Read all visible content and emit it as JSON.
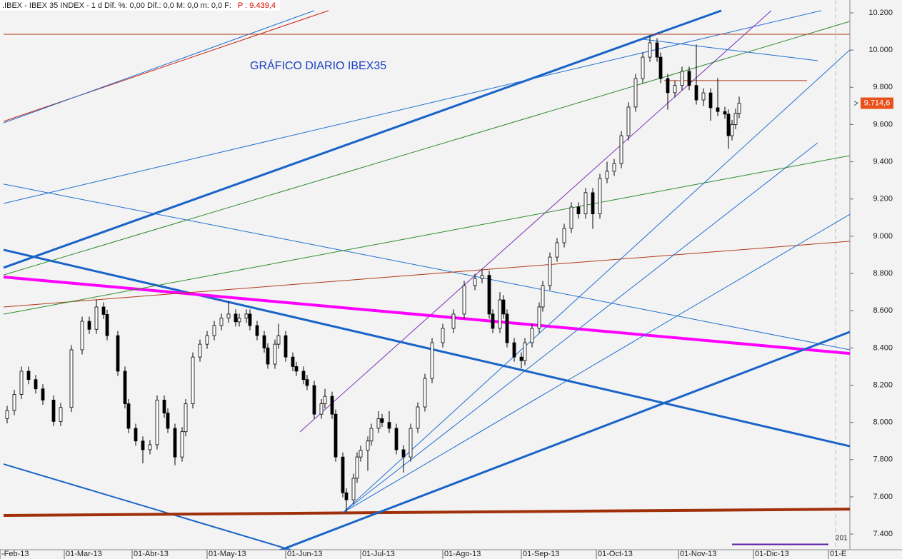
{
  "chart_data": {
    "type": "candlestick",
    "header": ".IBEX - IBEX 35 INDEX - 1 d Dif. %: 0,00  Dif.: 0,0  M: 0,0  m: 0,0  F:",
    "header_price": "P : 9.439,4",
    "annotation": "GRÁFICO DIARIO IBEX35",
    "last_price_label": "9.714,6",
    "corner_label": "201",
    "xlim": [
      0,
      238
    ],
    "ylim": [
      7316,
      10269
    ],
    "xticks": [
      {
        "value": 0,
        "label": "-Feb-13"
      },
      {
        "value": 18,
        "label": "01-Mar-13"
      },
      {
        "value": 37,
        "label": "01-Abr-13"
      },
      {
        "value": 58,
        "label": "01-May-13"
      },
      {
        "value": 80,
        "label": "01-Jun-13"
      },
      {
        "value": 101,
        "label": "01-Jul-13"
      },
      {
        "value": 124,
        "label": "01-Ago-13"
      },
      {
        "value": 146,
        "label": "01-Sep-13"
      },
      {
        "value": 167,
        "label": "01-Oct-13"
      },
      {
        "value": 190,
        "label": "01-Nov-13"
      },
      {
        "value": 211,
        "label": "01-Dic-13"
      },
      {
        "value": 232,
        "label": "01-E"
      }
    ],
    "yticks": [
      {
        "value": 7400,
        "label": "7.400"
      },
      {
        "value": 7600,
        "label": "7.600"
      },
      {
        "value": 7800,
        "label": "7.800"
      },
      {
        "value": 8000,
        "label": "8.000"
      },
      {
        "value": 8200,
        "label": "8.200"
      },
      {
        "value": 8400,
        "label": "8.400"
      },
      {
        "value": 8600,
        "label": "8.600"
      },
      {
        "value": 8800,
        "label": "8.800"
      },
      {
        "value": 9000,
        "label": "9.000"
      },
      {
        "value": 9200,
        "label": "9.200"
      },
      {
        "value": 9400,
        "label": "9.400"
      },
      {
        "value": 9600,
        "label": "9.600"
      },
      {
        "value": 9800,
        "label": "9.800"
      },
      {
        "value": 10000,
        "label": "10.000"
      },
      {
        "value": 10200,
        "label": "10.200"
      }
    ],
    "candles": [
      [
        2,
        8020,
        8089,
        7995,
        8064
      ],
      [
        4,
        8064,
        8175,
        8039,
        8150
      ],
      [
        6,
        8150,
        8300,
        8125,
        8275
      ],
      [
        8,
        8275,
        8300,
        8205,
        8230
      ],
      [
        10,
        8230,
        8255,
        8155,
        8180
      ],
      [
        12,
        8180,
        8205,
        8095,
        8120
      ],
      [
        15,
        8120,
        8145,
        7980,
        8005
      ],
      [
        17,
        8005,
        8105,
        7980,
        8080
      ],
      [
        20,
        8080,
        8415,
        8055,
        8390
      ],
      [
        23,
        8390,
        8568,
        8365,
        8543
      ],
      [
        25,
        8543,
        8568,
        8475,
        8500
      ],
      [
        27,
        8500,
        8660,
        8475,
        8620
      ],
      [
        29,
        8620,
        8645,
        8555,
        8580
      ],
      [
        30,
        8580,
        8605,
        8441,
        8466
      ],
      [
        33,
        8466,
        8491,
        8250,
        8275
      ],
      [
        35,
        8275,
        8300,
        8075,
        8100
      ],
      [
        36,
        8100,
        8125,
        7943,
        7968
      ],
      [
        38,
        7968,
        7993,
        7875,
        7900
      ],
      [
        40,
        7900,
        7925,
        7780,
        7853
      ],
      [
        42,
        7853,
        7905,
        7828,
        7880
      ],
      [
        44,
        7880,
        8145,
        7855,
        8120
      ],
      [
        46,
        8120,
        8145,
        8025,
        8050
      ],
      [
        47,
        8050,
        8075,
        7943,
        7968
      ],
      [
        49,
        7968,
        7993,
        7770,
        7814
      ],
      [
        51,
        7814,
        7975,
        7789,
        7950
      ],
      [
        52,
        7950,
        8125,
        7925,
        8100
      ],
      [
        54,
        8100,
        8376,
        8075,
        8351
      ],
      [
        56,
        8351,
        8445,
        8326,
        8420
      ],
      [
        58,
        8420,
        8491,
        8395,
        8466
      ],
      [
        60,
        8466,
        8545,
        8441,
        8520
      ],
      [
        62,
        8520,
        8585,
        8495,
        8560
      ],
      [
        64,
        8560,
        8650,
        8535,
        8582
      ],
      [
        66,
        8582,
        8607,
        8515,
        8540
      ],
      [
        67,
        8540,
        8585,
        8515,
        8560
      ],
      [
        69,
        8560,
        8607,
        8535,
        8582
      ],
      [
        70,
        8582,
        8607,
        8495,
        8520
      ],
      [
        72,
        8520,
        8545,
        8441,
        8466
      ],
      [
        74,
        8466,
        8491,
        8375,
        8400
      ],
      [
        75,
        8400,
        8425,
        8288,
        8313
      ],
      [
        77,
        8313,
        8445,
        8288,
        8420
      ],
      [
        78,
        8420,
        8530,
        8395,
        8466
      ],
      [
        80,
        8466,
        8491,
        8326,
        8351
      ],
      [
        82,
        8351,
        8376,
        8275,
        8300
      ],
      [
        83,
        8300,
        8325,
        8250,
        8275
      ],
      [
        85,
        8275,
        8300,
        8205,
        8230
      ],
      [
        86,
        8230,
        8255,
        8173,
        8198
      ],
      [
        88,
        8198,
        8223,
        8019,
        8044
      ],
      [
        90,
        8044,
        8125,
        8019,
        8100
      ],
      [
        91,
        8100,
        8180,
        8075,
        8140
      ],
      [
        93,
        8140,
        8165,
        8019,
        8044
      ],
      [
        94,
        8044,
        8069,
        7789,
        7814
      ],
      [
        96,
        7814,
        7839,
        7597,
        7622
      ],
      [
        97,
        7622,
        7647,
        7520,
        7584
      ],
      [
        99,
        7584,
        7725,
        7559,
        7700
      ],
      [
        100,
        7700,
        7839,
        7675,
        7814
      ],
      [
        101,
        7814,
        7875,
        7789,
        7850
      ],
      [
        103,
        7850,
        7925,
        7740,
        7900
      ],
      [
        104,
        7900,
        7993,
        7875,
        7968
      ],
      [
        106,
        7968,
        8060,
        7943,
        8020
      ],
      [
        107,
        8020,
        8045,
        7975,
        8000
      ],
      [
        109,
        8000,
        8060,
        7943,
        7968
      ],
      [
        111,
        7968,
        7993,
        7828,
        7853
      ],
      [
        113,
        7853,
        7878,
        7730,
        7814
      ],
      [
        115,
        7814,
        7993,
        7789,
        7968
      ],
      [
        117,
        7968,
        8108,
        7943,
        8083
      ],
      [
        119,
        8083,
        8261,
        8058,
        8236
      ],
      [
        121,
        8236,
        8453,
        8211,
        8428
      ],
      [
        124,
        8428,
        8530,
        8403,
        8505
      ],
      [
        127,
        8505,
        8607,
        8480,
        8582
      ],
      [
        130,
        8582,
        8760,
        8557,
        8735
      ],
      [
        133,
        8735,
        8798,
        8710,
        8773
      ],
      [
        135,
        8773,
        8825,
        8748,
        8790
      ],
      [
        137,
        8790,
        8815,
        8557,
        8582
      ],
      [
        138,
        8582,
        8607,
        8480,
        8505
      ],
      [
        140,
        8505,
        8700,
        8480,
        8658
      ],
      [
        141,
        8658,
        8683,
        8557,
        8582
      ],
      [
        142,
        8582,
        8607,
        8403,
        8428
      ],
      [
        144,
        8428,
        8453,
        8326,
        8351
      ],
      [
        146,
        8351,
        8376,
        8290,
        8332
      ],
      [
        147,
        8332,
        8453,
        8307,
        8428
      ],
      [
        149,
        8428,
        8530,
        8403,
        8505
      ],
      [
        151,
        8505,
        8645,
        8480,
        8620
      ],
      [
        152,
        8620,
        8760,
        8595,
        8735
      ],
      [
        154,
        8735,
        8913,
        8710,
        8888
      ],
      [
        156,
        8888,
        8990,
        8863,
        8965
      ],
      [
        158,
        8965,
        9067,
        8940,
        9042
      ],
      [
        160,
        9042,
        9182,
        9017,
        9157
      ],
      [
        162,
        9157,
        9182,
        9095,
        9120
      ],
      [
        164,
        9120,
        9259,
        9095,
        9234
      ],
      [
        166,
        9234,
        9259,
        9040,
        9120
      ],
      [
        168,
        9120,
        9335,
        9095,
        9310
      ],
      [
        170,
        9310,
        9400,
        9285,
        9349
      ],
      [
        172,
        9349,
        9415,
        9324,
        9390
      ],
      [
        174,
        9390,
        9565,
        9365,
        9540
      ],
      [
        176,
        9540,
        9719,
        9515,
        9694
      ],
      [
        178,
        9694,
        9872,
        9669,
        9847
      ],
      [
        180,
        9847,
        9987,
        9822,
        9962
      ],
      [
        182,
        9962,
        10080,
        9937,
        10039
      ],
      [
        184,
        10039,
        10064,
        9937,
        9962
      ],
      [
        185,
        9962,
        9987,
        9822,
        9847
      ],
      [
        187,
        9847,
        9872,
        9680,
        9771
      ],
      [
        189,
        9771,
        9835,
        9746,
        9810
      ],
      [
        191,
        9810,
        9911,
        9785,
        9886
      ],
      [
        193,
        9886,
        9911,
        9785,
        9810
      ],
      [
        195,
        9810,
        10030,
        9707,
        9732
      ],
      [
        197,
        9732,
        9795,
        9700,
        9770
      ],
      [
        199,
        9770,
        9795,
        9620,
        9690
      ],
      [
        201,
        9690,
        9850,
        9645,
        9670
      ],
      [
        203,
        9670,
        9695,
        9631,
        9656
      ],
      [
        204,
        9656,
        9681,
        9470,
        9540
      ],
      [
        205,
        9540,
        9625,
        9515,
        9600
      ],
      [
        206,
        9600,
        9685,
        9575,
        9660
      ],
      [
        207,
        9660,
        9750,
        9635,
        9714.6
      ]
    ],
    "trendlines": [
      {
        "color": "#cc1f10",
        "width": 1,
        "x": [
          1,
          92
        ],
        "y": [
          9617,
          10212
        ]
      },
      {
        "color": "#1f6fd1",
        "width": 1,
        "x": [
          1,
          88
        ],
        "y": [
          9609,
          10212
        ]
      },
      {
        "color": "#1a64c8",
        "width": 3,
        "x": [
          1,
          202
        ],
        "y": [
          8831,
          10212
        ]
      },
      {
        "color": "#1f6fd1",
        "width": 1,
        "x": [
          1,
          230
        ],
        "y": [
          9176,
          10212
        ]
      },
      {
        "color": "#2e8b2e",
        "width": 1,
        "x": [
          1,
          238
        ],
        "y": [
          8792,
          10154
        ]
      },
      {
        "color": "#7b2fbe",
        "width": 1,
        "x": [
          84,
          216
        ],
        "y": [
          7949,
          10212
        ]
      },
      {
        "color": "#1f6fd1",
        "width": 1,
        "x": [
          1,
          238
        ],
        "y": [
          9280,
          8390
        ]
      },
      {
        "color": "#1a64c8",
        "width": 3,
        "x": [
          1,
          238
        ],
        "y": [
          8927,
          7872
        ]
      },
      {
        "color": "#ff00ff",
        "width": 4,
        "x": [
          1,
          238
        ],
        "y": [
          8781,
          8370
        ]
      },
      {
        "color": "#b03a1a",
        "width": 1,
        "x": [
          1,
          238
        ],
        "y": [
          8620,
          8973
        ]
      },
      {
        "color": "#2e8b2e",
        "width": 1,
        "x": [
          1,
          238
        ],
        "y": [
          8581,
          9433
        ]
      },
      {
        "color": "#1a64c8",
        "width": 2,
        "x": [
          1,
          90
        ],
        "y": [
          7776,
          7266
        ]
      },
      {
        "color": "#a0300a",
        "width": 4,
        "x": [
          1,
          238
        ],
        "y": [
          7500,
          7534
        ]
      },
      {
        "color": "#1a64c8",
        "width": 3,
        "x": [
          72,
          238
        ],
        "y": [
          7266,
          8486
        ]
      },
      {
        "color": "#1f6fd1",
        "width": 1,
        "x": [
          96,
          238
        ],
        "y": [
          7515,
          9118
        ]
      },
      {
        "color": "#1f6fd1",
        "width": 1,
        "x": [
          96,
          229
        ],
        "y": [
          7515,
          9502
        ]
      },
      {
        "color": "#1f6fd1",
        "width": 1,
        "x": [
          96,
          238
        ],
        "y": [
          7515,
          10001
        ]
      },
      {
        "color": "#1f6fd1",
        "width": 1,
        "x": [
          180,
          229
        ],
        "y": [
          10058,
          9943
        ]
      },
      {
        "color": "#b03a1a",
        "width": 1,
        "x": [
          1,
          238
        ],
        "y": [
          10085,
          10085
        ]
      },
      {
        "color": "#b03a1a",
        "width": 1,
        "x": [
          186,
          226
        ],
        "y": [
          9836,
          9836
        ]
      },
      {
        "color": "#5a1ea0",
        "width": 2,
        "x": [
          205,
          232
        ],
        "y": [
          7345,
          7345
        ]
      }
    ]
  }
}
